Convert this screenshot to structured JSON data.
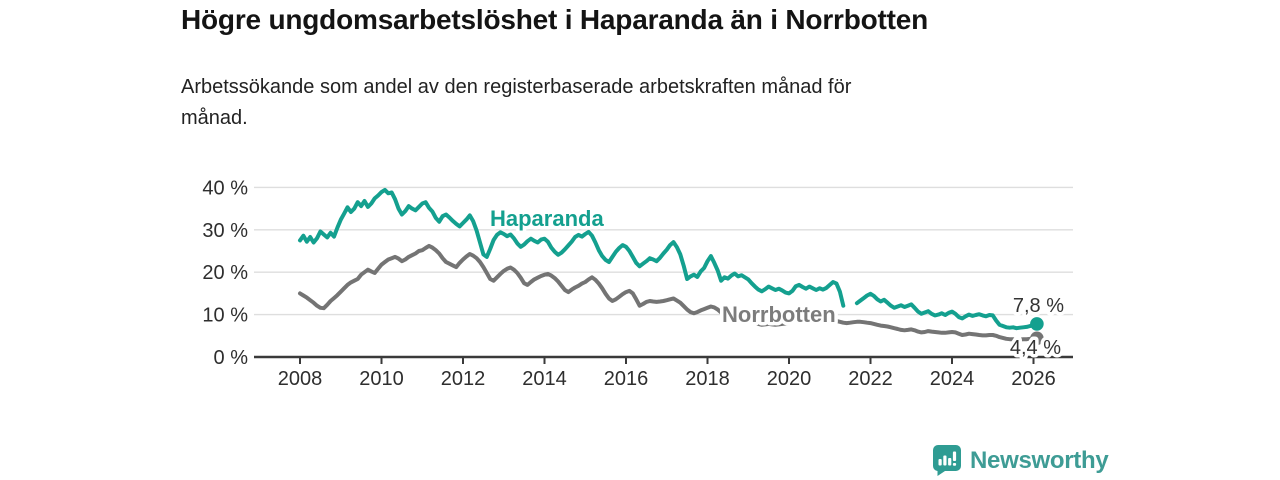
{
  "header": {
    "title": "Högre ungdomsarbetslöshet i Haparanda än i Norrbotten",
    "subtitle": "Arbetssökande som andel av den registerbaserade arbetskraften månad för månad."
  },
  "chart_data": {
    "type": "line",
    "title": "Högre ungdomsarbetslöshet i Haparanda än i Norrbotten",
    "xlabel": "",
    "ylabel": "",
    "grid": "horizontal",
    "x_start_year": 2008,
    "x_interval": "monthly",
    "x_end_label_note": "data ends early 2026",
    "xticks": [
      2008,
      2010,
      2012,
      2014,
      2016,
      2018,
      2020,
      2022,
      2024,
      2026
    ],
    "yticks": [
      0,
      10,
      20,
      30,
      40
    ],
    "ytick_suffix": " %",
    "ylim": [
      0,
      44
    ],
    "series": [
      {
        "name": "Haparanda",
        "color": "#14A08F",
        "end_label": "7,8 %",
        "end_value": 7.8,
        "values": [
          27.5,
          28.6,
          27.2,
          28.3,
          27.0,
          28.0,
          29.6,
          28.9,
          28.2,
          29.3,
          28.4,
          30.5,
          32.4,
          33.8,
          35.3,
          34.2,
          35.0,
          36.5,
          35.6,
          36.8,
          35.4,
          36.2,
          37.4,
          38.1,
          38.9,
          39.4,
          38.6,
          38.8,
          37.2,
          35.0,
          33.6,
          34.4,
          35.6,
          35.0,
          34.6,
          35.4,
          36.2,
          36.5,
          35.2,
          34.3,
          32.8,
          31.9,
          33.2,
          33.6,
          32.9,
          32.1,
          31.4,
          30.8,
          31.6,
          32.4,
          33.4,
          32.0,
          29.8,
          27.0,
          24.2,
          23.6,
          25.5,
          27.6,
          28.8,
          29.4,
          29.0,
          28.5,
          28.9,
          28.0,
          26.8,
          26.0,
          26.5,
          27.3,
          27.9,
          27.4,
          27.0,
          27.7,
          27.9,
          27.2,
          25.8,
          24.8,
          24.1,
          24.6,
          25.4,
          26.3,
          27.2,
          28.3,
          28.8,
          28.4,
          29.0,
          29.5,
          28.6,
          27.0,
          25.2,
          23.8,
          22.9,
          22.4,
          23.6,
          24.8,
          25.7,
          26.4,
          26.0,
          25.0,
          23.6,
          22.2,
          21.4,
          22.0,
          22.6,
          23.3,
          23.0,
          22.6,
          23.4,
          24.4,
          25.3,
          26.4,
          27.1,
          25.9,
          24.2,
          21.5,
          18.4,
          19.0,
          19.4,
          18.9,
          20.2,
          21.0,
          22.6,
          23.8,
          22.2,
          20.4,
          18.0,
          18.8,
          18.5,
          19.2,
          19.7,
          19.0,
          19.3,
          18.8,
          18.3,
          17.4,
          16.6,
          15.9,
          15.5,
          16.0,
          16.6,
          16.2,
          15.8,
          16.1,
          15.7,
          15.2,
          15.0,
          15.6,
          16.7,
          17.0,
          16.5,
          16.1,
          16.6,
          16.2,
          15.8,
          16.2,
          15.9,
          16.3,
          17.0,
          17.7,
          17.3,
          15.4,
          12.1,
          null,
          null,
          null,
          12.7,
          13.3,
          13.9,
          14.5,
          14.9,
          14.4,
          13.6,
          13.1,
          13.5,
          12.8,
          12.1,
          11.6,
          11.9,
          12.2,
          11.8,
          12.1,
          12.4,
          11.6,
          10.7,
          10.2,
          10.5,
          10.8,
          10.2,
          9.8,
          10.0,
          10.3,
          9.9,
          10.4,
          10.7,
          10.2,
          9.4,
          9.1,
          9.6,
          10.0,
          9.7,
          9.9,
          10.1,
          9.8,
          9.6,
          9.9,
          9.8,
          8.6,
          7.6,
          7.3,
          7.0,
          6.9,
          7.0,
          6.8,
          6.9,
          7.0,
          7.1,
          7.3,
          7.5,
          7.8
        ]
      },
      {
        "name": "Norrbotten",
        "color": "#747474",
        "label_color": "#7C7C7C",
        "end_label": "4,4 %",
        "end_value": 4.4,
        "values": [
          15.0,
          14.5,
          14.0,
          13.4,
          12.8,
          12.1,
          11.6,
          11.5,
          12.3,
          13.2,
          13.9,
          14.6,
          15.4,
          16.2,
          17.0,
          17.6,
          18.0,
          18.4,
          19.4,
          20.0,
          20.6,
          20.2,
          19.8,
          20.8,
          21.8,
          22.4,
          23.0,
          23.3,
          23.6,
          23.2,
          22.6,
          23.0,
          23.6,
          24.0,
          24.4,
          25.0,
          25.2,
          25.7,
          26.2,
          25.8,
          25.2,
          24.4,
          23.3,
          22.4,
          22.0,
          21.6,
          21.2,
          22.2,
          23.0,
          23.7,
          24.3,
          23.9,
          23.3,
          22.4,
          21.2,
          19.8,
          18.4,
          18.0,
          18.8,
          19.6,
          20.3,
          20.8,
          21.1,
          20.6,
          19.8,
          18.7,
          17.4,
          17.0,
          17.7,
          18.3,
          18.7,
          19.1,
          19.4,
          19.6,
          19.2,
          18.6,
          17.8,
          16.8,
          15.8,
          15.3,
          15.9,
          16.4,
          16.8,
          17.3,
          17.7,
          18.3,
          18.8,
          18.2,
          17.3,
          16.2,
          14.9,
          13.8,
          13.2,
          13.6,
          14.2,
          14.8,
          15.3,
          15.6,
          15.0,
          13.6,
          12.1,
          12.5,
          13.0,
          13.2,
          13.1,
          13.0,
          13.1,
          13.2,
          13.4,
          13.6,
          13.8,
          13.3,
          12.8,
          12.0,
          11.2,
          10.6,
          10.3,
          10.6,
          11.0,
          11.3,
          11.6,
          11.9,
          11.7,
          11.2,
          10.5,
          9.9,
          9.4,
          9.0,
          8.7,
          8.5,
          8.4,
          8.3,
          8.3,
          8.2,
          8.0,
          7.8,
          7.6,
          7.7,
          7.8,
          7.7,
          7.6,
          7.7,
          7.8,
          7.9,
          8.0,
          8.3,
          8.7,
          9.0,
          8.9,
          8.8,
          8.7,
          8.6,
          8.5,
          8.5,
          8.5,
          8.6,
          8.6,
          8.6,
          8.5,
          8.3,
          8.1,
          8.0,
          8.1,
          8.2,
          8.3,
          8.3,
          8.2,
          8.1,
          8.0,
          7.8,
          7.6,
          7.4,
          7.3,
          7.2,
          7.0,
          6.8,
          6.6,
          6.4,
          6.3,
          6.4,
          6.5,
          6.3,
          6.0,
          5.8,
          5.9,
          6.1,
          6.0,
          5.9,
          5.8,
          5.7,
          5.7,
          5.8,
          5.9,
          5.8,
          5.5,
          5.2,
          5.3,
          5.5,
          5.4,
          5.3,
          5.2,
          5.1,
          5.1,
          5.2,
          5.2,
          5.0,
          4.7,
          4.5,
          4.3,
          4.2,
          4.2,
          4.1,
          4.1,
          4.2,
          4.2,
          4.3,
          4.3,
          4.4
        ]
      }
    ],
    "legend_position": "inline-labels"
  },
  "footer": {
    "brand": "Newsworthy",
    "brand_color": "#3E9C95",
    "logo_color": "#2F9C93"
  },
  "colors": {
    "haparanda": "#14A08F",
    "norrbotten": "#747474",
    "gridline": "#DEDEDE",
    "axis": "#3A3A3A",
    "tick_text": "#2E2E2E",
    "value_label_text": "#333333"
  }
}
